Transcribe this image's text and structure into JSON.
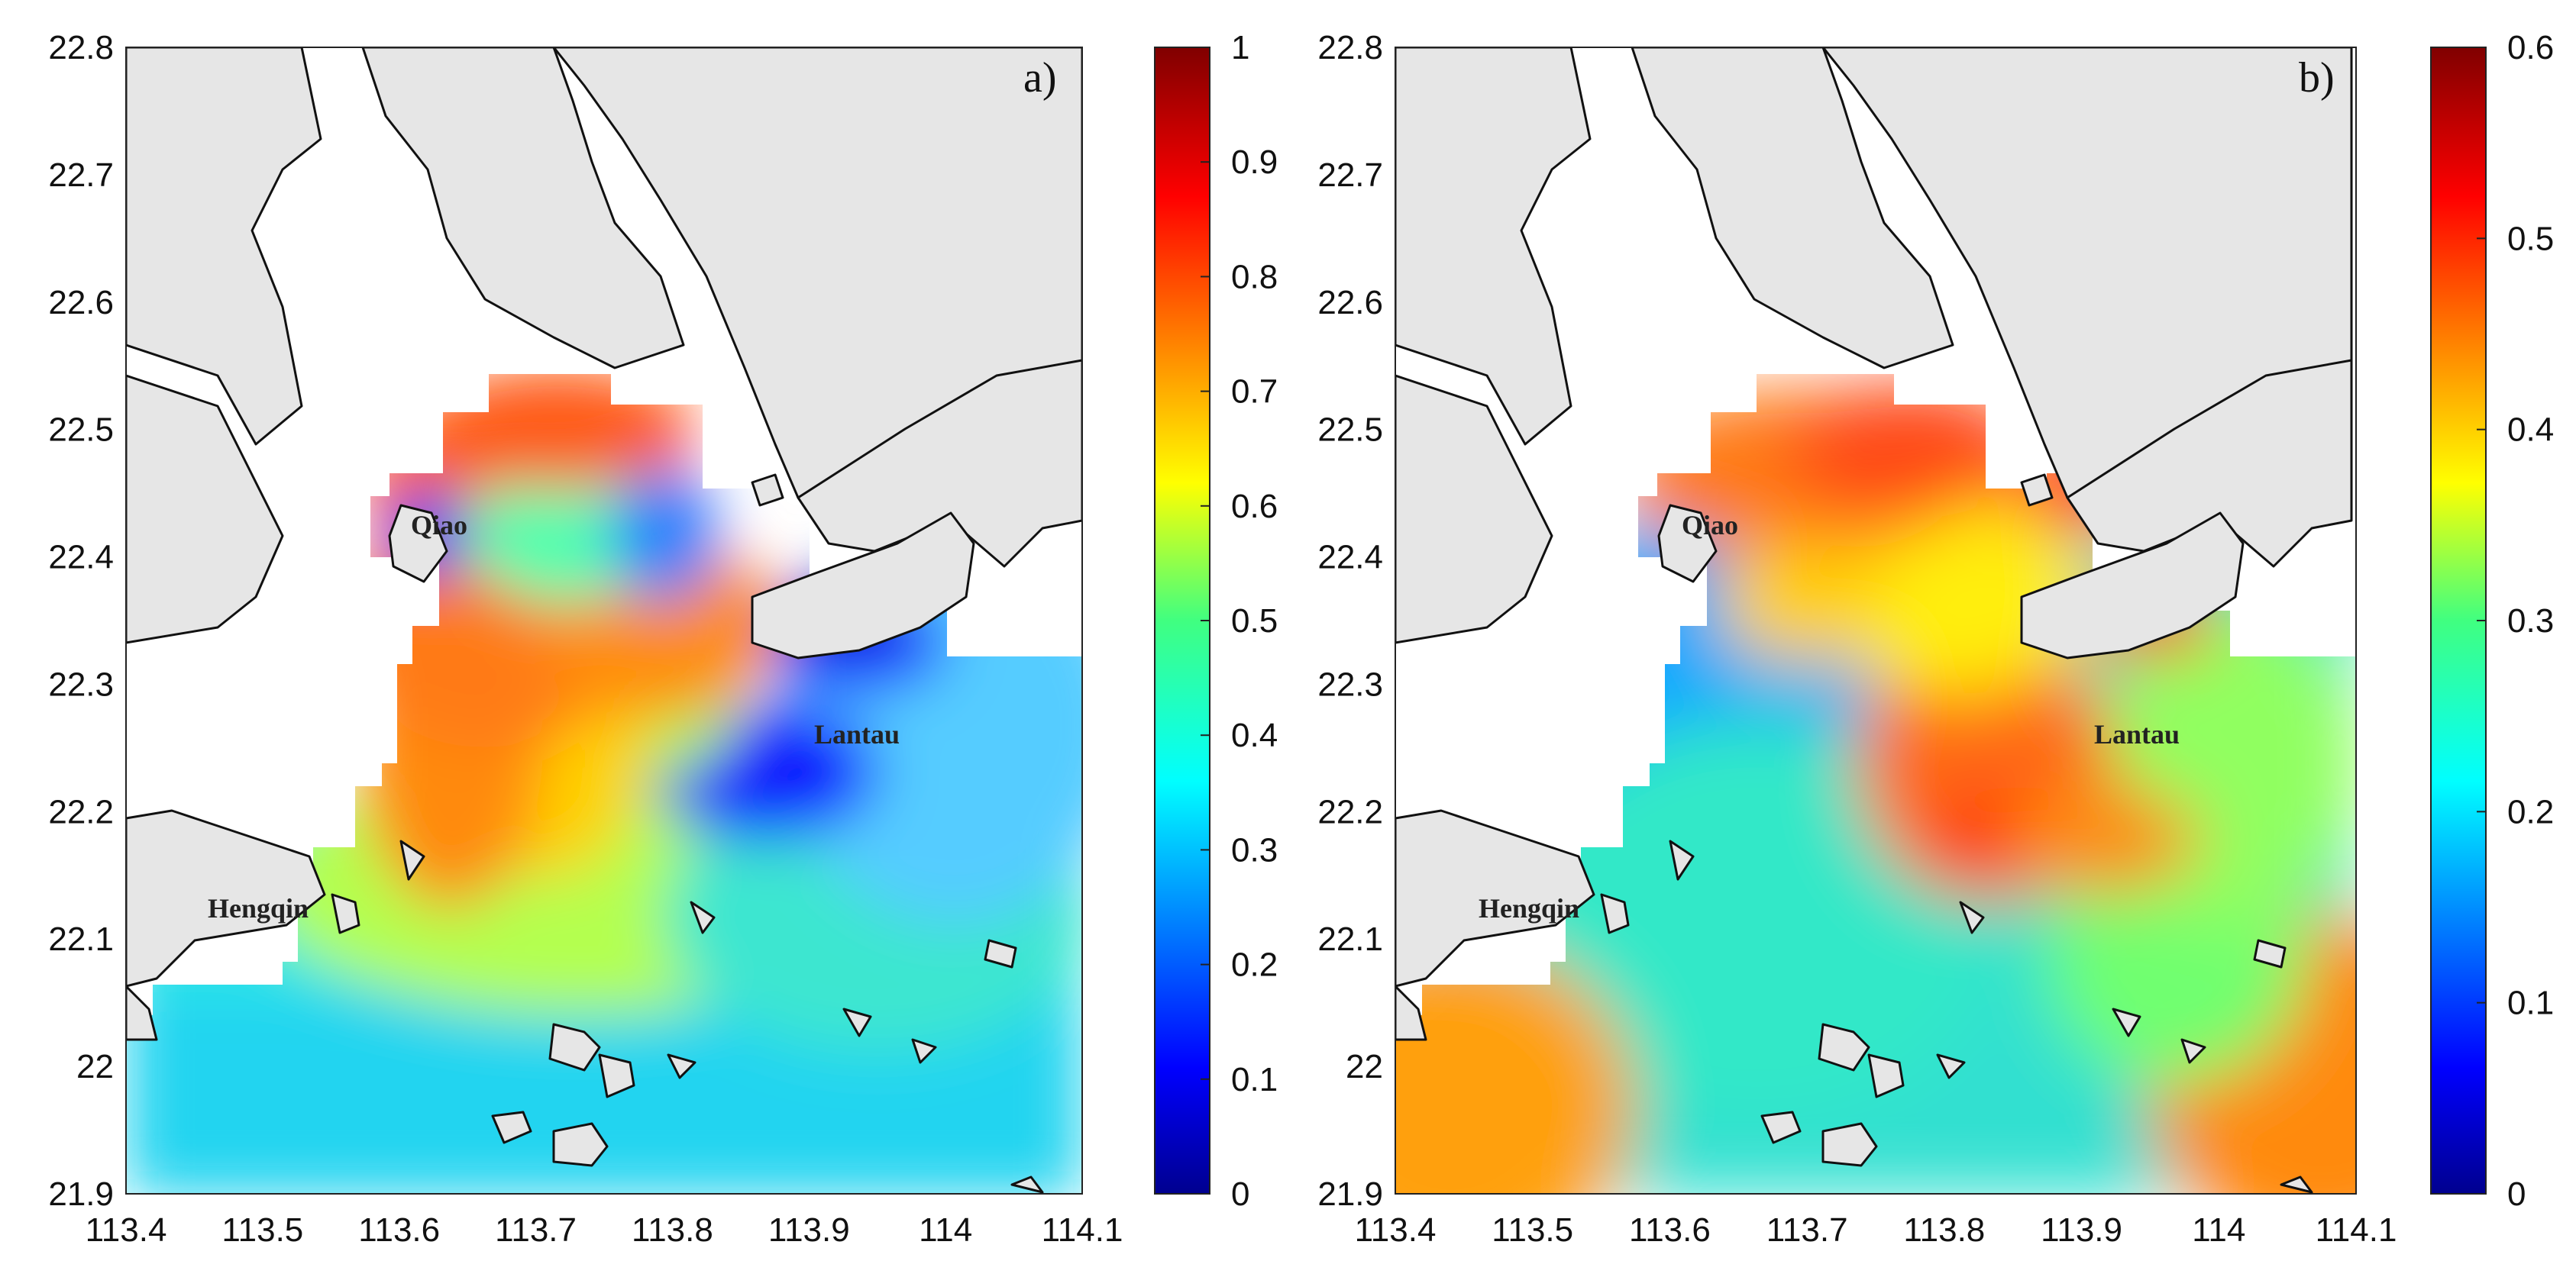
{
  "panels": [
    {
      "label": "a)",
      "x_ticks": [
        "113.4",
        "113.5",
        "113.6",
        "113.7",
        "113.8",
        "113.9",
        "114",
        "114.1"
      ],
      "y_ticks": [
        "22.8",
        "22.7",
        "22.6",
        "22.5",
        "22.4",
        "22.3",
        "22.2",
        "22.1",
        "22",
        "21.9"
      ],
      "colorbar_ticks": [
        "1",
        "0.9",
        "0.8",
        "0.7",
        "0.6",
        "0.5",
        "0.4",
        "0.3",
        "0.2",
        "0.1",
        "0"
      ],
      "places": [
        "Qiao",
        "Lantau",
        "Hengqin"
      ]
    },
    {
      "label": "b)",
      "x_ticks": [
        "113.4",
        "113.5",
        "113.6",
        "113.7",
        "113.8",
        "113.9",
        "114",
        "114.1"
      ],
      "y_ticks": [
        "22.8",
        "22.7",
        "22.6",
        "22.5",
        "22.4",
        "22.3",
        "22.2",
        "22.1",
        "22",
        "21.9"
      ],
      "colorbar_ticks": [
        "0.6",
        "0.5",
        "0.4",
        "0.3",
        "0.2",
        "0.1",
        "0"
      ],
      "places": [
        "Qiao",
        "Lantau",
        "Hengqin"
      ]
    }
  ],
  "chart_data": [
    {
      "type": "heatmap",
      "title": "a)",
      "xlim": [
        113.4,
        114.1
      ],
      "ylim": [
        21.9,
        22.8
      ],
      "colorbar_range": [
        0,
        1
      ],
      "colormap": "jet"
    },
    {
      "type": "heatmap",
      "title": "b)",
      "xlim": [
        113.4,
        114.1
      ],
      "ylim": [
        21.9,
        22.8
      ],
      "colorbar_range": [
        0,
        0.6
      ],
      "colormap": "jet"
    }
  ],
  "colors": {
    "land": "#e6e6e6",
    "coast": "#111111",
    "frame": "#222222"
  }
}
